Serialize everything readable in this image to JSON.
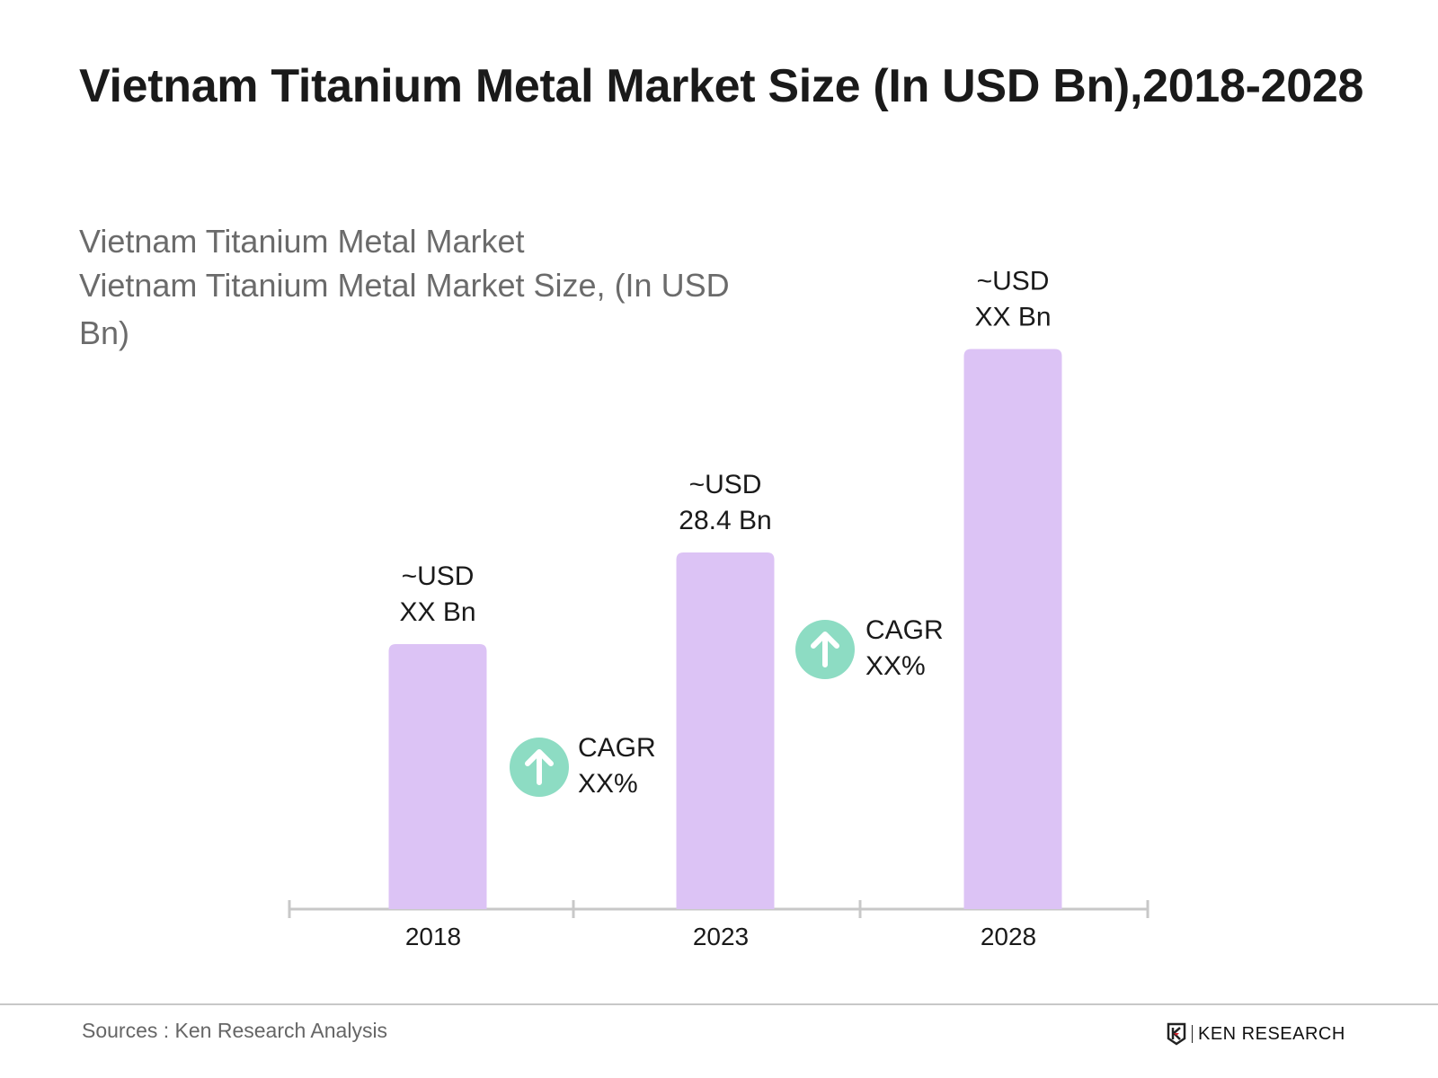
{
  "title": "Vietnam Titanium Metal Market Size (In USD Bn),2018-2028",
  "subtitle_lines": [
    "Vietnam Titanium Metal Market",
    "Vietnam Titanium Metal Market Size, (In USD",
    "Bn)"
  ],
  "chart_data": {
    "type": "bar",
    "title": "Vietnam Titanium Metal Market Size (In USD Bn),2018-2028",
    "categories": [
      "2018",
      "2023",
      "2028"
    ],
    "values": [
      21.1,
      28.4,
      44.6
    ],
    "data_labels": [
      [
        "~USD",
        "XX Bn"
      ],
      [
        "~USD",
        "28.4 Bn"
      ],
      [
        "~USD",
        "XX Bn"
      ]
    ],
    "annotations": [
      {
        "between": [
          "2018",
          "2023"
        ],
        "lines": [
          "CAGR",
          "XX%"
        ],
        "icon": "arrow-up-circle-icon"
      },
      {
        "between": [
          "2023",
          "2028"
        ],
        "lines": [
          "CAGR",
          "XX%"
        ],
        "icon": "arrow-up-circle-icon"
      }
    ],
    "grid": false,
    "bar_color": "#dcc3f5",
    "cagr_color": "#8ddcc3",
    "axis_color": "#c8c8c8"
  },
  "footer": {
    "source": "Sources : Ken Research Analysis",
    "logo_text": "KEN RESEARCH"
  }
}
